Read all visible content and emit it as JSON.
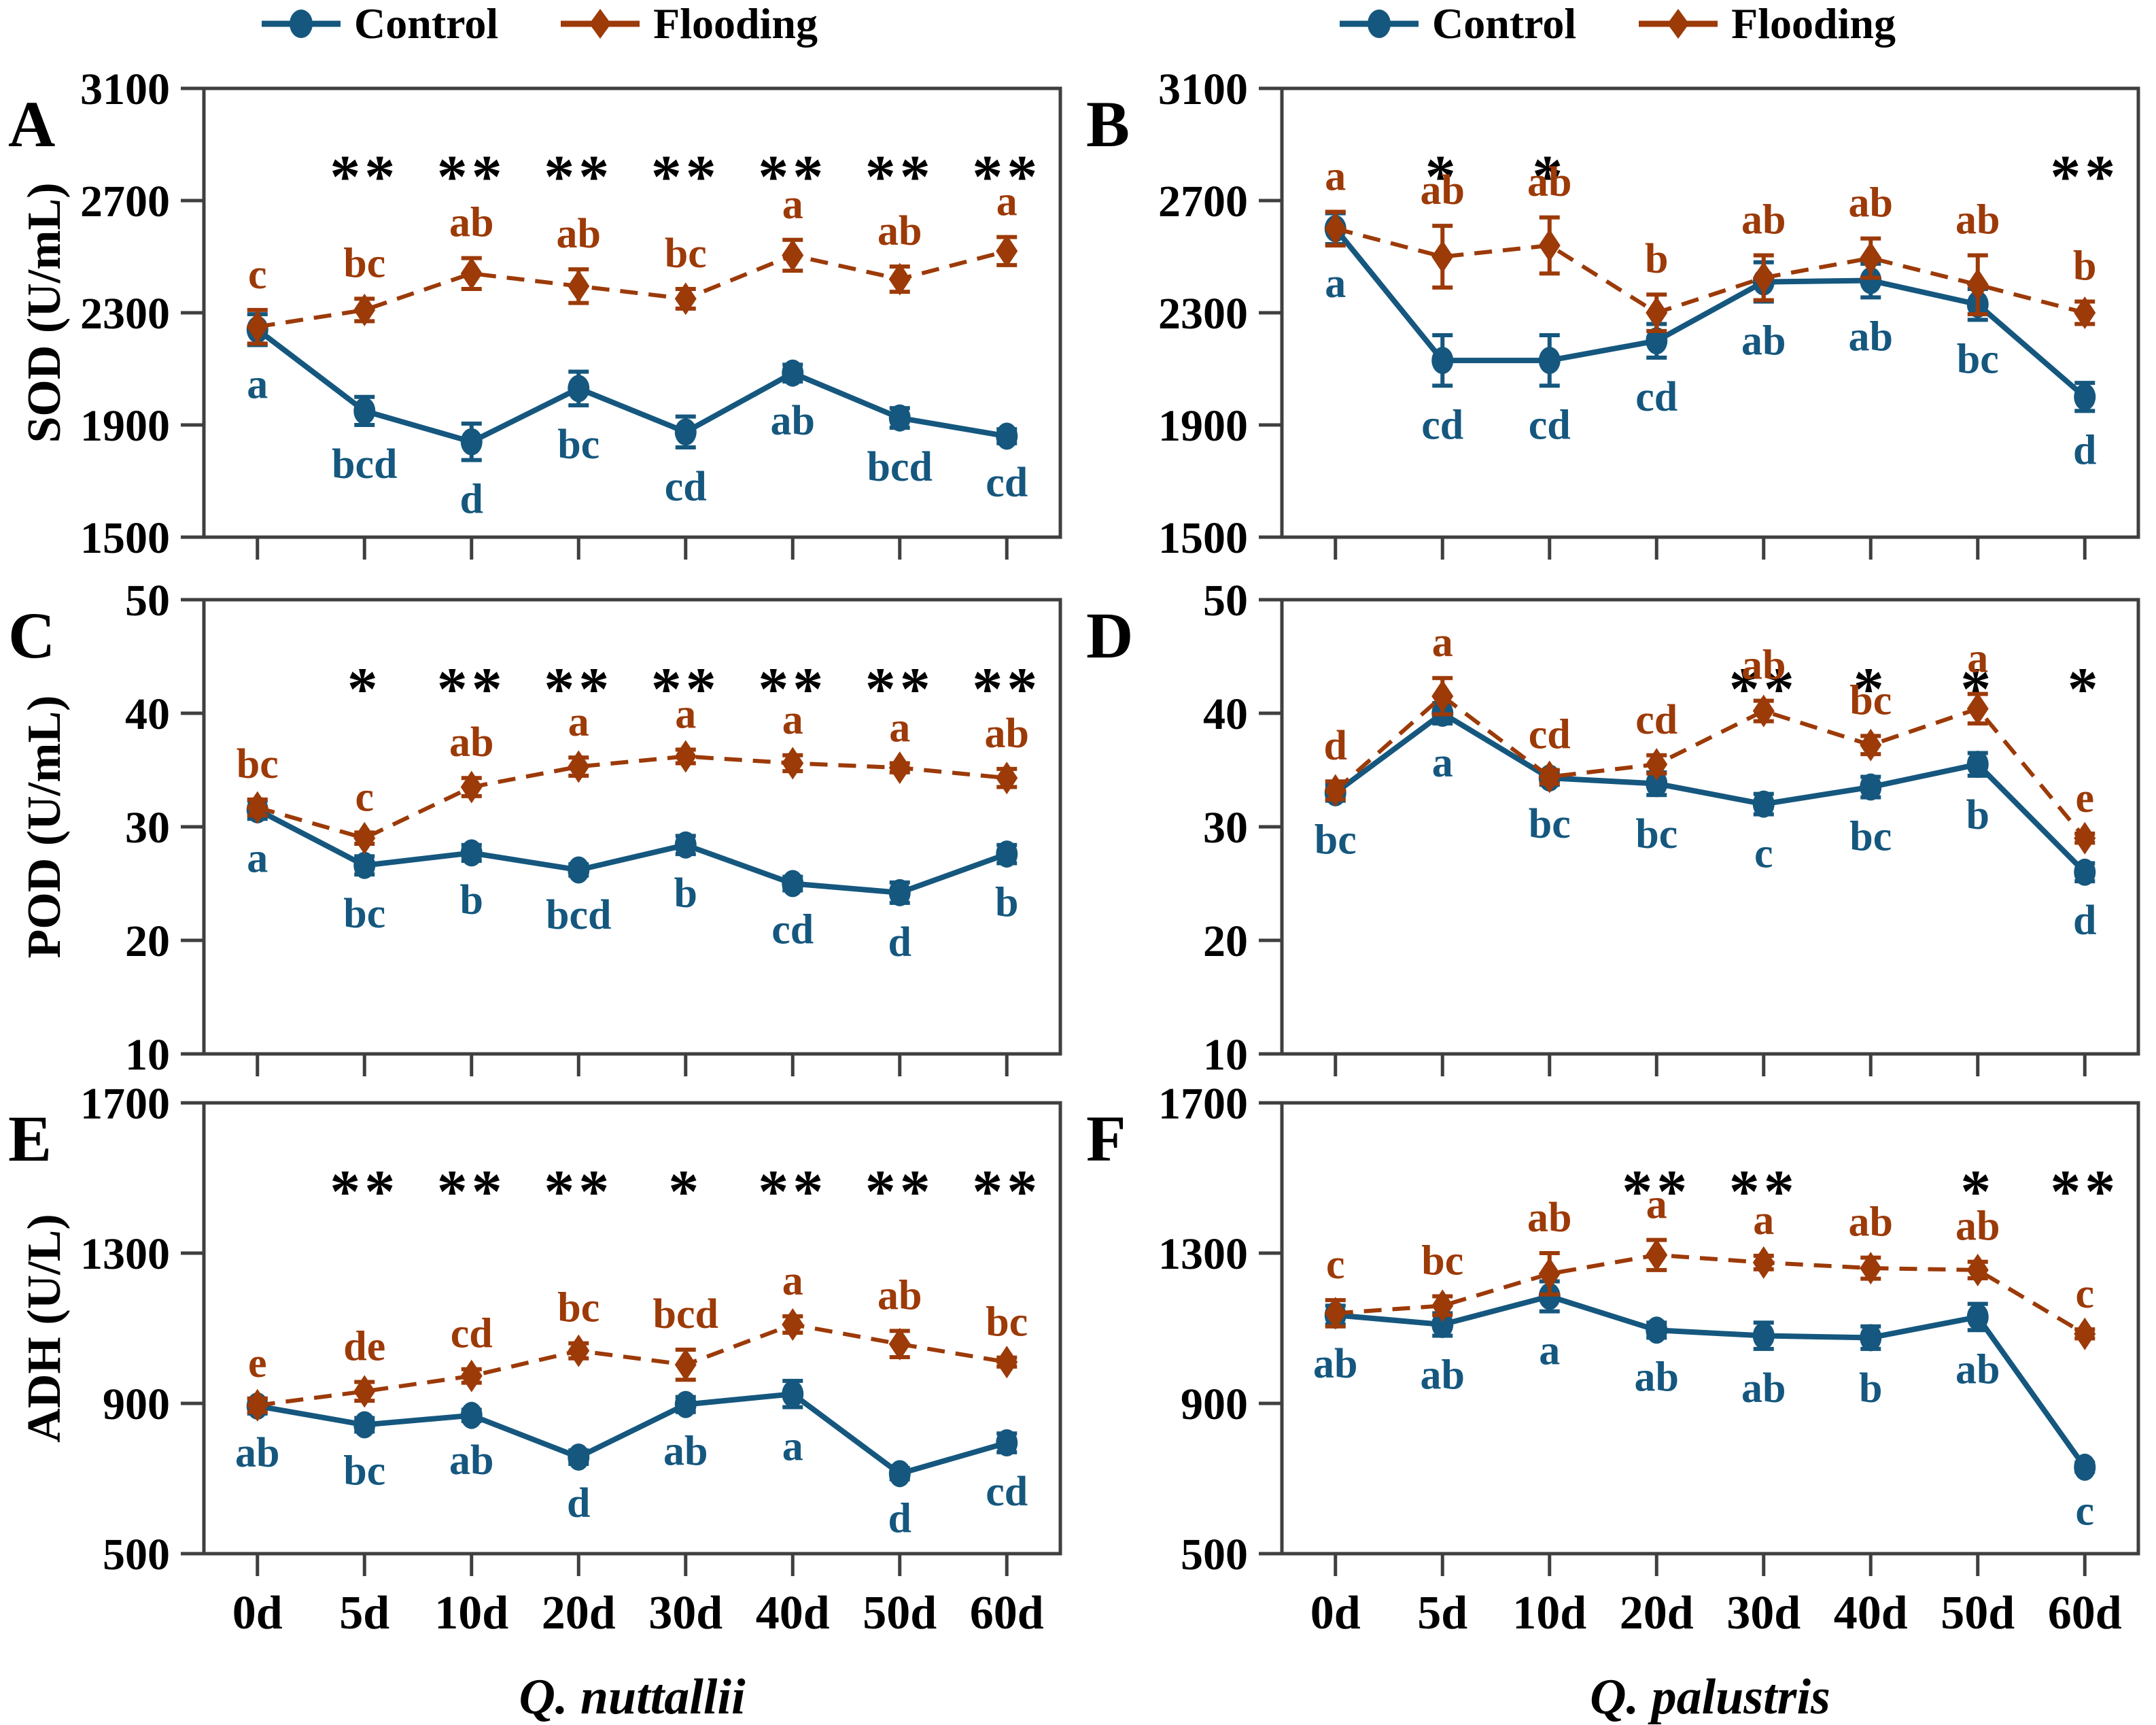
{
  "legend": {
    "items": [
      {
        "label": "Control",
        "marker": "circle-icon",
        "color": "#15577E"
      },
      {
        "label": "Flooding",
        "marker": "diamond-icon",
        "color": "#9C3A08"
      }
    ]
  },
  "colors": {
    "control": "#15577E",
    "flooding": "#9C3A08",
    "axis": "#3F3F3F",
    "star": "#000000"
  },
  "x_categories": [
    "0d",
    "5d",
    "10d",
    "20d",
    "30d",
    "40d",
    "50d",
    "60d"
  ],
  "columns": [
    {
      "species_label": "Q. nuttallii"
    },
    {
      "species_label": "Q. palustris"
    }
  ],
  "chart_data": [
    {
      "panel": "A",
      "type": "line",
      "ylabel": "SOD (U/mL)",
      "ylim": [
        1500,
        3100
      ],
      "yticks": [
        1500,
        1900,
        2300,
        2700,
        3100
      ],
      "categories": [
        "0d",
        "5d",
        "10d",
        "20d",
        "30d",
        "40d",
        "50d",
        "60d"
      ],
      "significance": [
        "",
        "**",
        "**",
        "**",
        "**",
        "**",
        "**",
        "**"
      ],
      "series": [
        {
          "name": "Control",
          "values": [
            2240,
            1950,
            1840,
            2030,
            1875,
            2085,
            1925,
            1860
          ],
          "errors": [
            55,
            50,
            65,
            60,
            55,
            30,
            35,
            25
          ],
          "letters": [
            "a",
            "bcd",
            "d",
            "bc",
            "cd",
            "ab",
            "bcd",
            "cd"
          ]
        },
        {
          "name": "Flooding",
          "values": [
            2250,
            2310,
            2440,
            2395,
            2350,
            2505,
            2420,
            2520
          ],
          "errors": [
            60,
            40,
            55,
            60,
            35,
            55,
            45,
            50
          ],
          "letters": [
            "c",
            "bc",
            "ab",
            "ab",
            "bc",
            "a",
            "ab",
            "a"
          ]
        }
      ]
    },
    {
      "panel": "B",
      "type": "line",
      "ylabel": "",
      "ylim": [
        1500,
        3100
      ],
      "yticks": [
        1500,
        1900,
        2300,
        2700,
        3100
      ],
      "categories": [
        "0d",
        "5d",
        "10d",
        "20d",
        "30d",
        "40d",
        "50d",
        "60d"
      ],
      "significance": [
        "",
        "*",
        "*",
        "",
        "",
        "",
        "",
        "**"
      ],
      "series": [
        {
          "name": "Control",
          "values": [
            2600,
            2130,
            2130,
            2200,
            2410,
            2415,
            2330,
            2000
          ],
          "errors": [
            55,
            90,
            90,
            60,
            70,
            60,
            55,
            50
          ],
          "letters": [
            "a",
            "cd",
            "cd",
            "cd",
            "ab",
            "ab",
            "bc",
            "d"
          ]
        },
        {
          "name": "Flooding",
          "values": [
            2600,
            2500,
            2540,
            2300,
            2425,
            2495,
            2400,
            2300
          ],
          "errors": [
            60,
            110,
            100,
            65,
            80,
            70,
            105,
            40
          ],
          "letters": [
            "a",
            "ab",
            "ab",
            "b",
            "ab",
            "ab",
            "ab",
            "b"
          ]
        }
      ]
    },
    {
      "panel": "C",
      "type": "line",
      "ylabel": "POD (U/mL)",
      "ylim": [
        10,
        50
      ],
      "yticks": [
        10,
        20,
        30,
        40,
        50
      ],
      "categories": [
        "0d",
        "5d",
        "10d",
        "20d",
        "30d",
        "40d",
        "50d",
        "60d"
      ],
      "significance": [
        "",
        "*",
        "**",
        "**",
        "**",
        "**",
        "**",
        "**"
      ],
      "series": [
        {
          "name": "Control",
          "values": [
            31.5,
            26.6,
            27.7,
            26.2,
            28.4,
            25.0,
            24.2,
            27.6
          ],
          "errors": [
            0.8,
            0.8,
            0.7,
            0.5,
            0.8,
            0.6,
            0.9,
            0.8
          ],
          "letters": [
            "a",
            "bc",
            "b",
            "bcd",
            "b",
            "cd",
            "d",
            "b"
          ]
        },
        {
          "name": "Flooding",
          "values": [
            31.7,
            29.0,
            33.5,
            35.3,
            36.2,
            35.6,
            35.2,
            34.3
          ],
          "errors": [
            0.7,
            0.5,
            0.8,
            0.8,
            0.6,
            0.7,
            0.4,
            0.8
          ],
          "letters": [
            "bc",
            "c",
            "ab",
            "a",
            "a",
            "a",
            "a",
            "ab"
          ]
        }
      ]
    },
    {
      "panel": "D",
      "type": "line",
      "ylabel": "",
      "ylim": [
        10,
        50
      ],
      "yticks": [
        10,
        20,
        30,
        40,
        50
      ],
      "categories": [
        "0d",
        "5d",
        "10d",
        "20d",
        "30d",
        "40d",
        "50d",
        "60d"
      ],
      "significance": [
        "",
        "",
        "",
        "",
        "**",
        "*",
        "*",
        "*"
      ],
      "series": [
        {
          "name": "Control",
          "values": [
            33.0,
            40.0,
            34.3,
            33.8,
            32.0,
            33.5,
            35.5,
            26.0
          ],
          "errors": [
            0.7,
            0.9,
            0.6,
            1.0,
            0.9,
            0.9,
            1.0,
            0.8
          ],
          "letters": [
            "bc",
            "a",
            "bc",
            "bc",
            "c",
            "bc",
            "b",
            "d"
          ]
        },
        {
          "name": "Flooding",
          "values": [
            33.2,
            41.5,
            34.4,
            35.5,
            40.2,
            37.2,
            40.4,
            29.0
          ],
          "errors": [
            0.8,
            1.6,
            0.6,
            0.8,
            0.9,
            0.8,
            1.3,
            0.4
          ],
          "letters": [
            "d",
            "a",
            "cd",
            "cd",
            "ab",
            "bc",
            "a",
            "e"
          ]
        }
      ]
    },
    {
      "panel": "E",
      "type": "line",
      "ylabel": "ADH (U/L)",
      "ylim": [
        500,
        1700
      ],
      "yticks": [
        500,
        900,
        1300,
        1700
      ],
      "categories": [
        "0d",
        "5d",
        "10d",
        "20d",
        "30d",
        "40d",
        "50d",
        "60d"
      ],
      "significance": [
        "",
        "**",
        "**",
        "**",
        "*",
        "**",
        "**",
        "**"
      ],
      "series": [
        {
          "name": "Control",
          "values": [
            893,
            843,
            868,
            757,
            897,
            925,
            713,
            795
          ],
          "errors": [
            20,
            18,
            15,
            18,
            20,
            35,
            15,
            25
          ],
          "letters": [
            "ab",
            "bc",
            "ab",
            "d",
            "ab",
            "a",
            "d",
            "cd"
          ]
        },
        {
          "name": "Flooding",
          "values": [
            895,
            932,
            973,
            1040,
            1003,
            1110,
            1058,
            1010
          ],
          "errors": [
            18,
            25,
            18,
            20,
            40,
            22,
            35,
            12
          ],
          "letters": [
            "e",
            "de",
            "cd",
            "bc",
            "bcd",
            "a",
            "ab",
            "bc"
          ]
        }
      ]
    },
    {
      "panel": "F",
      "type": "line",
      "ylabel": "",
      "ylim": [
        500,
        1700
      ],
      "yticks": [
        500,
        900,
        1300,
        1700
      ],
      "categories": [
        "0d",
        "5d",
        "10d",
        "20d",
        "30d",
        "40d",
        "50d",
        "60d"
      ],
      "significance": [
        "",
        "",
        "",
        "**",
        "**",
        "",
        "*",
        "**"
      ],
      "series": [
        {
          "name": "Control",
          "values": [
            1135,
            1110,
            1185,
            1095,
            1080,
            1075,
            1130,
            730
          ],
          "errors": [
            25,
            30,
            40,
            20,
            35,
            30,
            35,
            12
          ],
          "letters": [
            "ab",
            "ab",
            "a",
            "ab",
            "ab",
            "b",
            "ab",
            "c"
          ]
        },
        {
          "name": "Flooding",
          "values": [
            1140,
            1160,
            1245,
            1295,
            1275,
            1260,
            1255,
            1085
          ],
          "errors": [
            35,
            25,
            55,
            40,
            18,
            28,
            22,
            12
          ],
          "letters": [
            "c",
            "bc",
            "ab",
            "a",
            "a",
            "ab",
            "ab",
            "c"
          ]
        }
      ]
    }
  ]
}
